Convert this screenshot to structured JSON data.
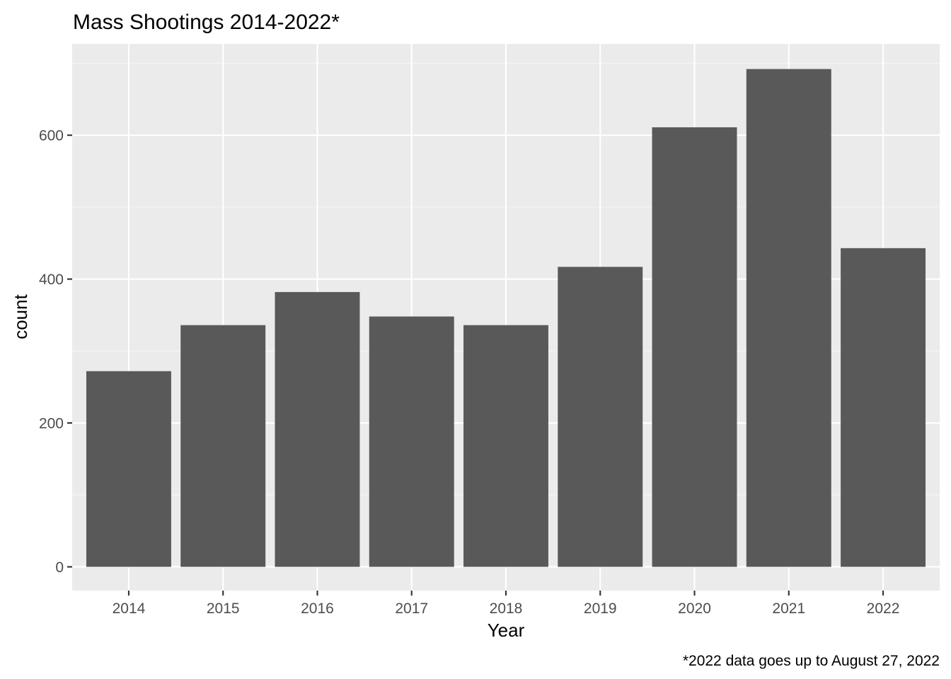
{
  "colors": {
    "panel_background": "#ebebeb",
    "grid_major": "#ffffff",
    "grid_minor": "#f5f5f5",
    "bar_fill": "#595959",
    "tick_color": "#333333",
    "tick_label_color": "#4d4d4d"
  },
  "chart_data": {
    "type": "bar",
    "title": "Mass Shootings 2014-2022*",
    "xlabel": "Year",
    "ylabel": "count",
    "caption": "*2022 data goes up to August 27, 2022",
    "categories": [
      "2014",
      "2015",
      "2016",
      "2017",
      "2018",
      "2019",
      "2020",
      "2021",
      "2022"
    ],
    "values": [
      272,
      336,
      382,
      348,
      336,
      417,
      611,
      692,
      443
    ],
    "ylim": [
      -33,
      727
    ],
    "yticks": [
      0,
      200,
      400,
      600
    ],
    "ytick_labels": [
      "0",
      "200",
      "400",
      "600"
    ],
    "grid": true,
    "legend": "none"
  }
}
